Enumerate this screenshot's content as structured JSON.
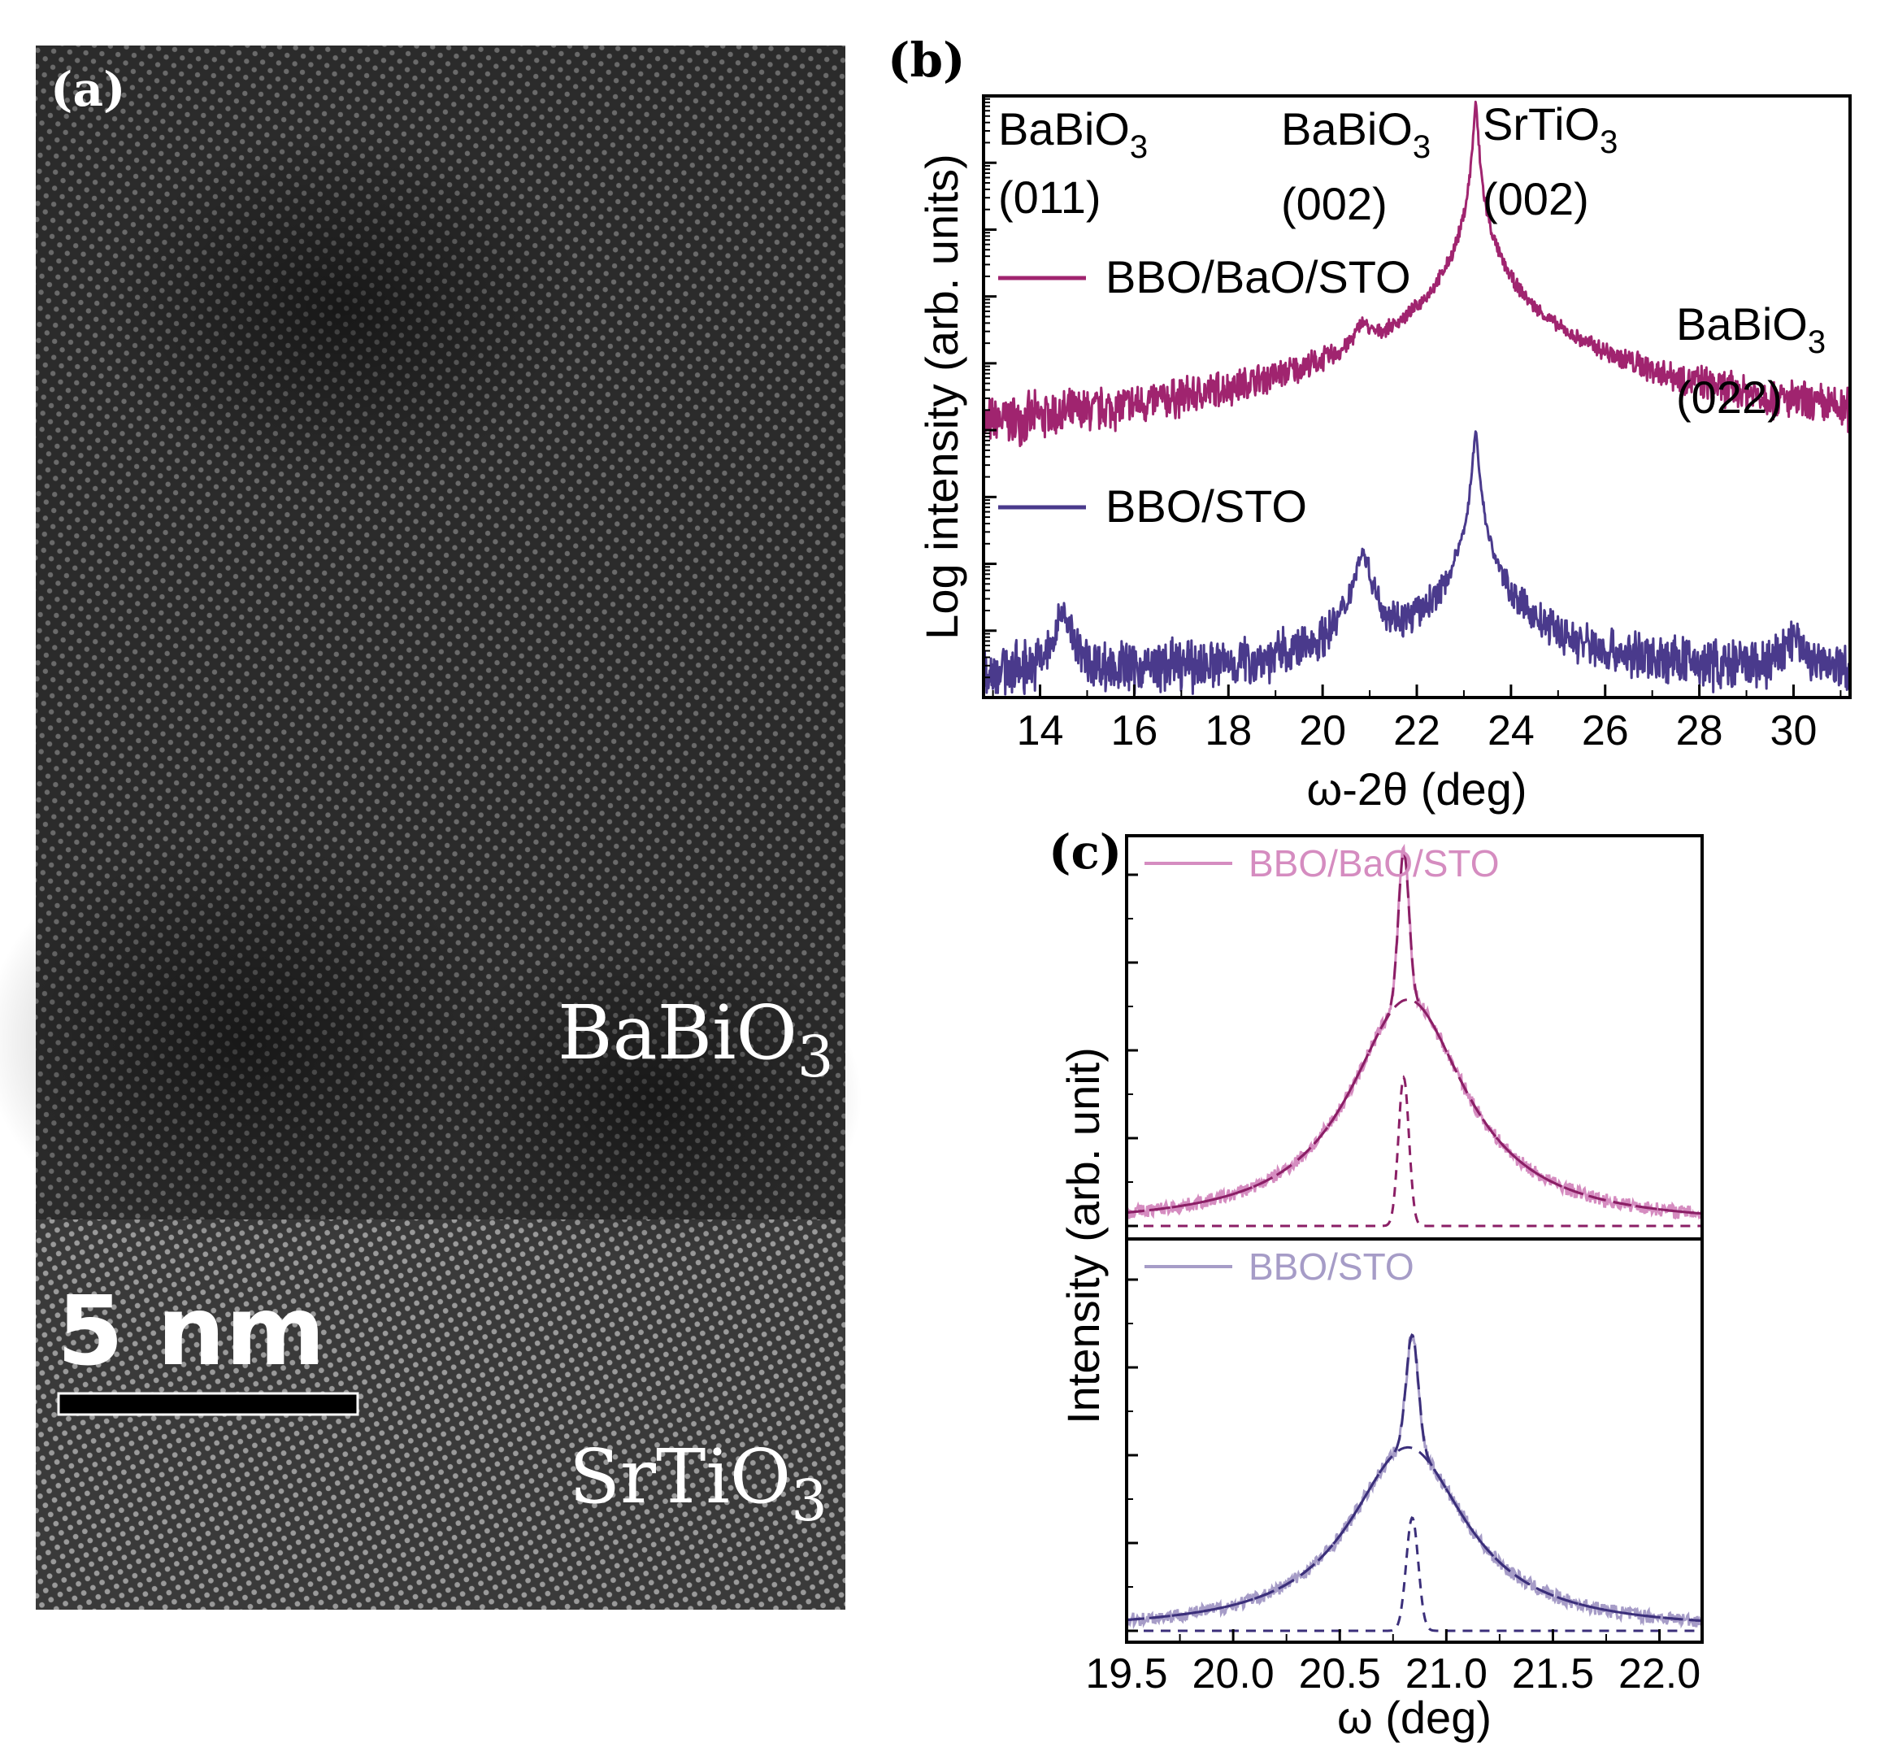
{
  "panels": {
    "a": {
      "letter": "(a)",
      "film_label": "BaBiO",
      "film_sub": "3",
      "substrate_label": "SrTiO",
      "substrate_sub": "3",
      "scale_bar": "5 nm"
    },
    "b": {
      "letter": "(b)"
    },
    "c": {
      "letter": "(c)"
    }
  },
  "colors": {
    "bbo_bao_sto": "#a0246f",
    "bbo_sto": "#4a3a8c",
    "bbo_bao_sto_light": "#d58cc0",
    "bbo_sto_light": "#a69cc7",
    "fit_bao": "#8b1f66",
    "fit_sto": "#3b2f7a"
  },
  "chart_data": [
    {
      "id": "b",
      "type": "line",
      "xlabel": "ω-2θ (deg)",
      "ylabel": "Log intensity (arb. units)",
      "xlim": [
        12.8,
        31.2
      ],
      "ylog_decades": 9,
      "xticks": [
        "14",
        "16",
        "18",
        "20",
        "22",
        "24",
        "26",
        "28",
        "30"
      ],
      "annotations": [
        {
          "text": "BaBiO",
          "sub": "3",
          "hkl": "(011)",
          "x": 14.5
        },
        {
          "text": "BaBiO",
          "sub": "3",
          "hkl": "(002)",
          "x": 20.85
        },
        {
          "text": "SrTiO",
          "sub": "3",
          "hkl": "(002)",
          "x": 23.25
        },
        {
          "text": "BaBiO",
          "sub": "3",
          "hkl": "(022)",
          "x": 30.0
        }
      ],
      "series": [
        {
          "name": "BBO/BaO/STO",
          "peaks": [
            {
              "x": 20.85,
              "height_decades": 1.9,
              "width": 0.15
            },
            {
              "x": 23.25,
              "height_decades": 5.4,
              "width": 0.04
            }
          ],
          "baseline_decades": 0.5
        },
        {
          "name": "BBO/STO",
          "peaks": [
            {
              "x": 14.5,
              "height_decades": 0.9,
              "width": 0.13
            },
            {
              "x": 20.85,
              "height_decades": 1.8,
              "width": 0.15
            },
            {
              "x": 23.25,
              "height_decades": 3.6,
              "width": 0.05
            },
            {
              "x": 30.0,
              "height_decades": 0.35,
              "width": 0.2
            }
          ],
          "baseline_decades": 0.4
        }
      ]
    },
    {
      "id": "c",
      "type": "line",
      "xlabel": "ω (deg)",
      "ylabel": "Intensity (arb. unit)",
      "xlim": [
        19.5,
        22.2
      ],
      "xticks": [
        "19.5",
        "20.0",
        "20.5",
        "21.0",
        "21.5",
        "22.0"
      ],
      "xtick_values": [
        19.5,
        20.0,
        20.5,
        21.0,
        21.5,
        22.0
      ],
      "series": [
        {
          "name": "BBO/BaO/STO",
          "center": 20.82,
          "broad_height": 0.58,
          "broad_width": 0.42,
          "sharp_center": 20.8,
          "sharp_height": 0.38,
          "sharp_width": 0.035
        },
        {
          "name": "BBO/STO",
          "center": 20.82,
          "broad_height": 0.47,
          "broad_width": 0.42,
          "sharp_center": 20.84,
          "sharp_height": 0.29,
          "sharp_width": 0.04
        }
      ]
    }
  ]
}
